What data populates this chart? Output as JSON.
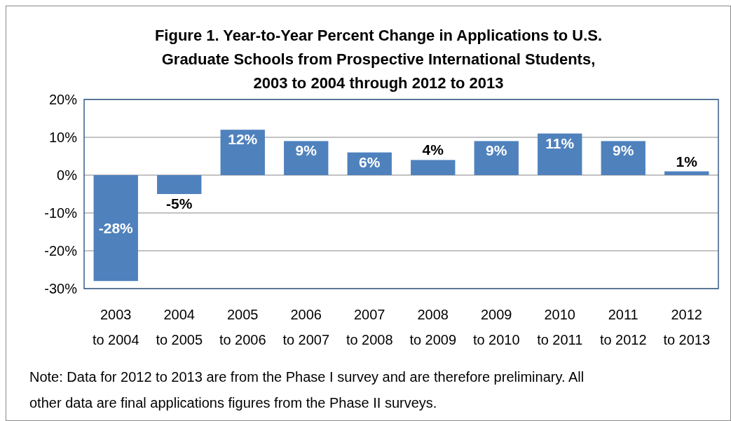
{
  "chart_data": {
    "type": "bar",
    "title": "Figure 1. Year-to-Year Percent Change in Applications to U.S. Graduate Schools from Prospective International Students, 2003 to 2004 through 2012 to 2013",
    "categories": [
      "2003 to 2004",
      "2004 to 2005",
      "2005 to 2006",
      "2006 to 2007",
      "2007 to 2008",
      "2008 to 2009",
      "2009 to 2010",
      "2010 to 2011",
      "2011 to 2012",
      "2012 to 2013"
    ],
    "values": [
      -28,
      -5,
      12,
      9,
      6,
      4,
      9,
      11,
      9,
      1
    ],
    "value_labels": [
      "-28%",
      "-5%",
      "12%",
      "9%",
      "6%",
      "4%",
      "9%",
      "11%",
      "9%",
      "1%"
    ],
    "color": "#4f81bd",
    "ylim": [
      -30,
      20
    ],
    "yticks": [
      {
        "value": -30,
        "label": "-30%"
      },
      {
        "value": -20,
        "label": "-20%"
      },
      {
        "value": -10,
        "label": "-10%"
      },
      {
        "value": 0,
        "label": "0%"
      },
      {
        "value": 10,
        "label": "10%"
      },
      {
        "value": 20,
        "label": "20%"
      }
    ],
    "grid": "y",
    "annotations": [
      "Note: Data for 2012 to 2013 are from the Phase I survey and are therefore preliminary. All other data are final applications figures from the Phase II surveys."
    ]
  }
}
